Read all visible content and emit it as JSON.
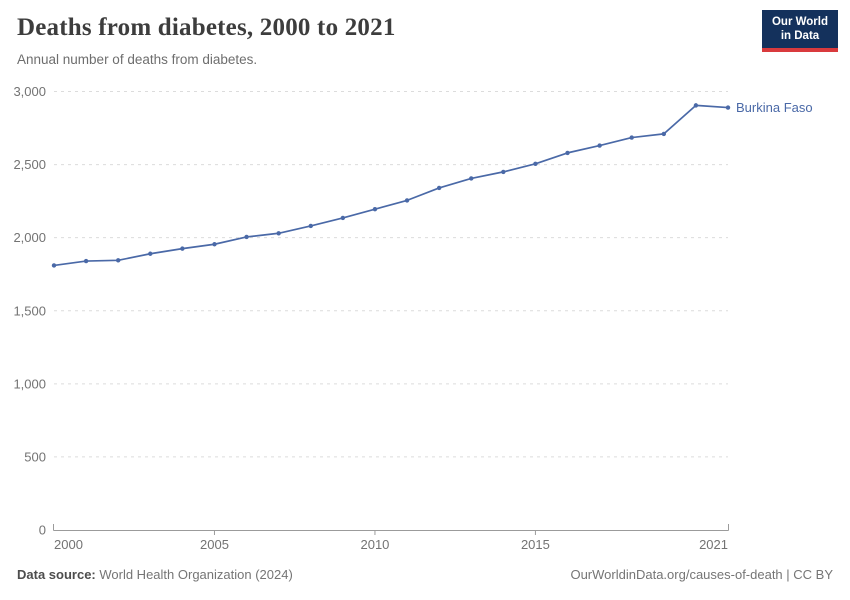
{
  "header": {
    "title": "Deaths from diabetes, 2000 to 2021",
    "subtitle": "Annual number of deaths from diabetes."
  },
  "logo": {
    "line1": "Our World",
    "line2": "in Data"
  },
  "chart_data": {
    "type": "line",
    "title": "Deaths from diabetes, 2000 to 2021",
    "xlabel": "",
    "ylabel": "Annual number of deaths from diabetes",
    "x": [
      2000,
      2001,
      2002,
      2003,
      2004,
      2005,
      2006,
      2007,
      2008,
      2009,
      2010,
      2011,
      2012,
      2013,
      2014,
      2015,
      2016,
      2017,
      2018,
      2019,
      2020,
      2021
    ],
    "series": [
      {
        "name": "Burkina Faso",
        "values": [
          1810,
          1840,
          1845,
          1890,
          1925,
          1955,
          2005,
          2030,
          2080,
          2135,
          2195,
          2255,
          2340,
          2405,
          2450,
          2505,
          2580,
          2630,
          2685,
          2710,
          2905,
          2890
        ]
      }
    ],
    "xlim": [
      2000,
      2021
    ],
    "ylim": [
      0,
      3000
    ],
    "xticks": [
      2000,
      2005,
      2010,
      2015,
      2021
    ],
    "yticks": [
      0,
      500,
      1000,
      1500,
      2000,
      2500,
      3000
    ],
    "grid": "horizontal-dashed",
    "legend_position": "end-of-line-label"
  },
  "footer": {
    "source_label": "Data source:",
    "source_value": " World Health Organization (2024)",
    "attribution": "OurWorldinData.org/causes-of-death | CC BY"
  },
  "colors": {
    "line": "#4a69a7",
    "grid": "#dcdcdc",
    "axis": "#9b9b9b",
    "tick_text": "#737373",
    "title_text": "#3d3d3d",
    "subtitle_text": "#6e6e6e",
    "footer_text": "#757575",
    "logo_bg": "#14315c",
    "logo_stripe": "#d93a3d"
  }
}
